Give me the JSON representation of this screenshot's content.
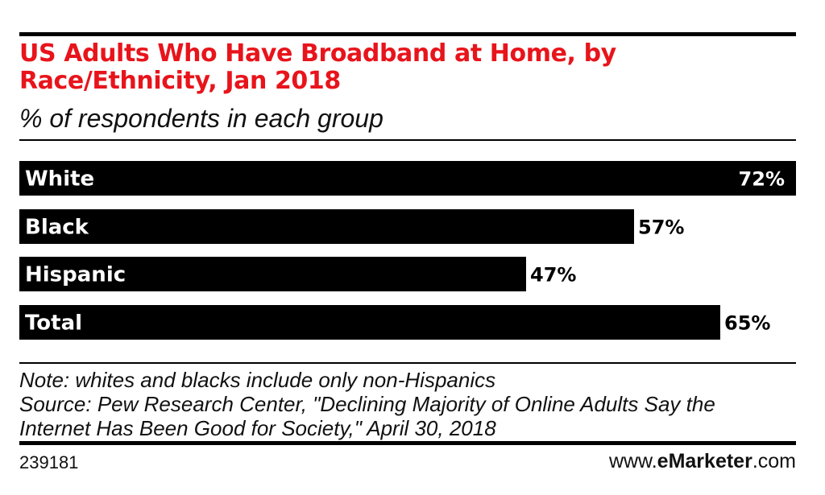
{
  "header": {
    "title": "US Adults Who Have Broadband at Home, by Race/Ethnicity, Jan 2018",
    "subtitle": "% of respondents in each group",
    "title_color": "#e8141b"
  },
  "chart_data": {
    "type": "bar",
    "orientation": "horizontal",
    "categories": [
      "White",
      "Black",
      "Hispanic",
      "Total"
    ],
    "values": [
      72,
      57,
      47,
      65
    ],
    "value_labels": [
      "72%",
      "57%",
      "47%",
      "65%"
    ],
    "title": "US Adults Who Have Broadband at Home, by Race/Ethnicity, Jan 2018",
    "subtitle": "% of respondents in each group",
    "xlabel": "",
    "ylabel": "",
    "xlim": [
      0,
      72
    ],
    "grid": false,
    "legend": "none",
    "bar_color": "#000000",
    "category_label_color": "#ffffff",
    "value_label_color": "#000000"
  },
  "footer": {
    "note": "Note: whites and blacks include only non-Hispanics",
    "source_line1": "Source: Pew Research Center, \"Declining Majority of Online Adults Say the",
    "source_line2": "Internet Has Been Good for Society,\" April 30, 2018",
    "chart_id": "239181",
    "brand_prefix": "www.",
    "brand_e": "e",
    "brand_name": "Marketer",
    "brand_suffix": ".com"
  }
}
